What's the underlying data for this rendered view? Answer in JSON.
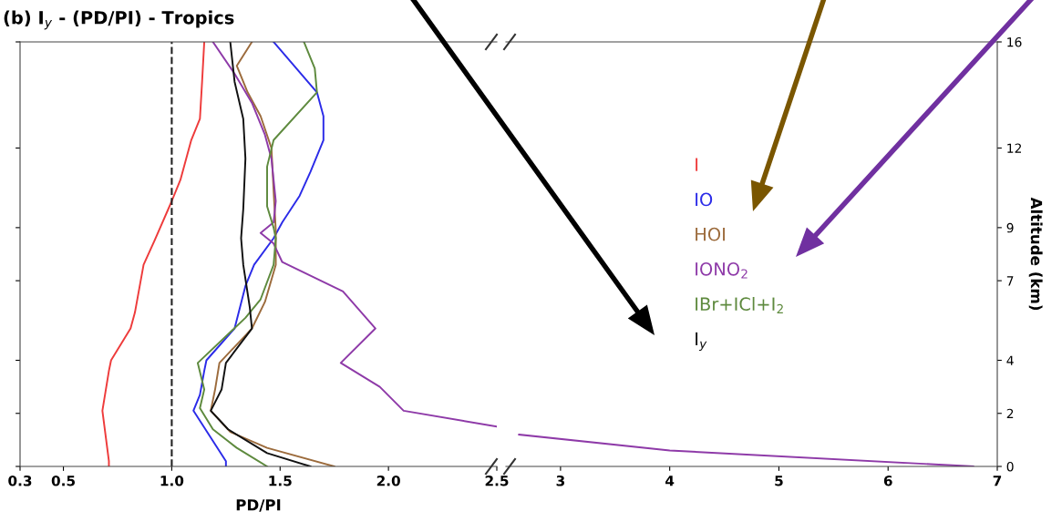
{
  "chart_data": [
    {
      "type": "line",
      "title": "(b) I$_{y}$ - (PD/PI) - Tropics",
      "xlabel": "PD/PI",
      "xlim": [
        0.3,
        2.5
      ],
      "xticks": [
        0.3,
        0.5,
        {
          "value": 1.0,
          "label": "1.0"
        },
        1.5,
        {
          "value": 2.0,
          "label": "2.0"
        },
        2.5
      ],
      "ylim": [
        0,
        16
      ],
      "yticks": [
        0,
        2,
        4,
        7,
        9,
        12,
        16
      ],
      "tick_labels": "x",
      "legend": "right",
      "ref_lines": [
        {
          "axis": "x",
          "value": 1.0,
          "color": "#222222",
          "line_style": "dashed"
        }
      ],
      "series": [
        {
          "name": "I",
          "color": "#ee3b3b",
          "x": [
            1.15,
            1.14,
            1.13,
            1.09,
            1.04,
            1.0,
            0.92,
            0.87,
            0.83,
            0.81,
            0.72,
            0.71,
            0.68,
            0.71,
            0.71
          ],
          "values": [
            16,
            14.5,
            13.1,
            12.3,
            10.8,
            10.0,
            8.5,
            7.6,
            5.8,
            5.2,
            4.0,
            3.6,
            2.1,
            0.2,
            0
          ]
        },
        {
          "name": "IO",
          "color": "#2b2be8",
          "x": [
            1.47,
            1.67,
            1.7,
            1.7,
            1.64,
            1.59,
            1.51,
            1.47,
            1.38,
            1.34,
            1.29,
            1.16,
            1.15,
            1.13,
            1.1,
            1.25,
            1.25
          ],
          "values": [
            16,
            14.1,
            13.2,
            12.3,
            11.1,
            10.2,
            9.2,
            8.6,
            7.6,
            6.8,
            5.2,
            4.0,
            3.6,
            2.7,
            2.1,
            0.2,
            0
          ]
        },
        {
          "name": "HOI",
          "color": "#9c6b3c",
          "x": [
            1.37,
            1.3,
            1.35,
            1.41,
            1.46,
            1.47,
            1.48,
            1.48,
            1.43,
            1.37,
            1.22,
            1.2,
            1.18,
            1.27,
            1.44,
            1.75
          ],
          "values": [
            16,
            15.1,
            14.1,
            13.2,
            12.0,
            10.4,
            8.9,
            7.6,
            6.2,
            5.2,
            3.9,
            2.9,
            2.1,
            1.3,
            0.7,
            0
          ]
        },
        {
          "name": "IONO$_{2}$",
          "color": "#8e3aa8",
          "x": [
            1.19,
            1.29,
            1.37,
            1.43,
            1.46,
            1.48,
            1.47,
            1.41,
            1.47,
            1.51,
            1.79,
            1.94,
            1.78,
            1.96,
            2.07,
            2.5
          ],
          "values": [
            16,
            14.8,
            13.7,
            12.5,
            11.6,
            10.0,
            9.2,
            8.8,
            8.4,
            7.7,
            6.6,
            5.2,
            3.9,
            3.0,
            2.1,
            1.5
          ]
        },
        {
          "name": "IBr+ICl+I$_{2}$",
          "color": "#5e8a3e",
          "x": [
            1.61,
            1.66,
            1.67,
            1.47,
            1.44,
            1.44,
            1.47,
            1.48,
            1.47,
            1.41,
            1.34,
            1.12,
            1.15,
            1.13,
            1.19,
            1.3,
            1.44
          ],
          "values": [
            16,
            15.0,
            14.1,
            12.3,
            11.3,
            9.8,
            9.0,
            8.6,
            7.6,
            6.3,
            5.6,
            3.9,
            2.9,
            2.2,
            1.4,
            0.7,
            0
          ]
        },
        {
          "name": "I$_{y}$",
          "color": "#111111",
          "x": [
            1.27,
            1.29,
            1.33,
            1.34,
            1.33,
            1.32,
            1.33,
            1.36,
            1.37,
            1.25,
            1.23,
            1.18,
            1.26,
            1.44,
            1.64
          ],
          "values": [
            16,
            14.5,
            13.1,
            11.6,
            9.7,
            8.6,
            7.6,
            6.0,
            5.2,
            3.9,
            2.9,
            2.1,
            1.4,
            0.5,
            0
          ]
        }
      ]
    },
    {
      "type": "line",
      "ylabel": "Altitude (km)",
      "xlim": [
        2.5,
        7
      ],
      "xticks": [
        3,
        4,
        5,
        6,
        7
      ],
      "ylim": [
        0,
        16
      ],
      "yticks": [
        0,
        2,
        4,
        7,
        9,
        12,
        16
      ],
      "series": [
        {
          "color": "#8e3aa8",
          "x": [
            2.62,
            4.0,
            6.78
          ],
          "values": [
            1.2,
            0.6,
            0.0
          ]
        }
      ]
    }
  ]
}
